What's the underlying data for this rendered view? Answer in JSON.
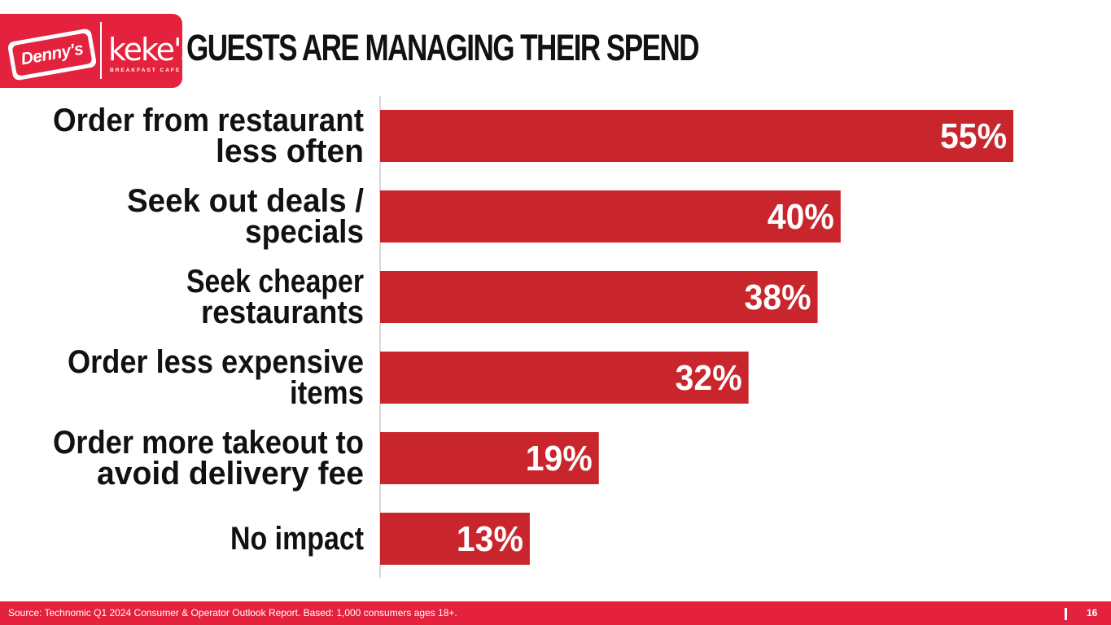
{
  "logo": {
    "brand1": "Denny's",
    "brand2": "keke's",
    "brand2_sub": "BREAKFAST CAFE"
  },
  "title": "GUESTS ARE MANAGING THEIR SPEND",
  "chart_data": {
    "type": "bar",
    "orientation": "horizontal",
    "categories": [
      [
        "Order from restaurant",
        "less often"
      ],
      [
        "Seek out deals /",
        "specials"
      ],
      [
        "Seek cheaper",
        "restaurants"
      ],
      [
        "Order less expensive",
        "items"
      ],
      [
        "Order more takeout to",
        "avoid delivery fee"
      ],
      [
        "No impact"
      ]
    ],
    "values": [
      55,
      40,
      38,
      32,
      19,
      13
    ],
    "value_labels": [
      "55%",
      "40%",
      "38%",
      "32%",
      "19%",
      "13%"
    ],
    "unit": "%",
    "xlim": [
      0,
      100
    ],
    "bar_color": "#c8262c",
    "grid": false
  },
  "footer": {
    "source": "Source: Technomic Q1 2024 Consumer & Operator Outlook Report. Based: 1,000 consumers ages 18+.",
    "page_number": "16"
  },
  "colors": {
    "brand_red": "#e4223e",
    "bar_red": "#c8262c",
    "text": "#111111"
  }
}
